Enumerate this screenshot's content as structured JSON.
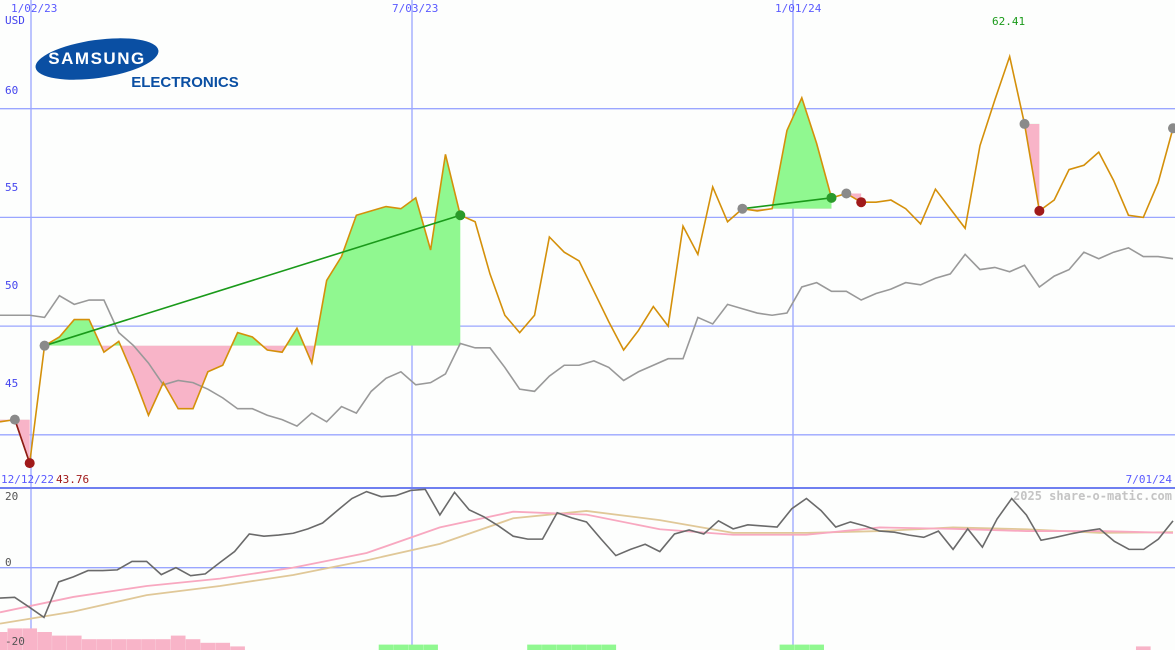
{
  "logo": {
    "brand": "SAMSUNG",
    "sub": "ELECTRONICS",
    "color": "#0a4fa3"
  },
  "chart_data": [
    {
      "type": "line",
      "unit": "USD",
      "x_ticks": [
        "1/02/23",
        "7/03/23",
        "1/01/24"
      ],
      "y_ticks": [
        60,
        55,
        50,
        45
      ],
      "ylim": [
        42.6,
        65.0
      ],
      "high_label": "62.41",
      "low_label": "43.76",
      "start_label": "12/12/22",
      "end_label": "7/01/24",
      "grid": true,
      "series": [
        {
          "role": "price",
          "color": "#d4900a",
          "values": [
            45.6,
            45.7,
            43.7,
            49.1,
            49.5,
            50.3,
            50.3,
            48.8,
            49.3,
            47.7,
            45.9,
            47.4,
            46.2,
            46.2,
            47.9,
            48.2,
            49.7,
            49.5,
            48.9,
            48.8,
            49.9,
            48.3,
            52.1,
            53.2,
            55.1,
            55.3,
            55.5,
            55.4,
            55.9,
            53.5,
            57.9,
            55.1,
            54.8,
            52.4,
            50.5,
            49.7,
            50.5,
            54.1,
            53.4,
            53.0,
            51.6,
            50.2,
            48.9,
            49.8,
            50.9,
            50.0,
            54.6,
            53.3,
            56.4,
            54.8,
            55.4,
            55.3,
            55.4,
            59.0,
            60.5,
            58.4,
            55.9,
            56.1,
            55.7,
            55.7,
            55.8,
            55.4,
            54.7,
            56.3,
            55.4,
            54.5,
            58.3,
            60.4,
            62.4,
            59.3,
            55.3,
            55.8,
            57.2,
            57.4,
            58.0,
            56.7,
            55.1,
            55.0,
            56.6,
            59.1
          ]
        },
        {
          "role": "relative",
          "color": "#999999",
          "values": [
            50.5,
            50.5,
            50.5,
            50.4,
            51.4,
            51.0,
            51.2,
            51.2,
            49.7,
            49.1,
            48.3,
            47.3,
            47.5,
            47.4,
            47.1,
            46.7,
            46.2,
            46.2,
            45.9,
            45.7,
            45.4,
            46.0,
            45.6,
            46.3,
            46.0,
            47.0,
            47.6,
            47.9,
            47.3,
            47.4,
            47.8,
            49.2,
            49.0,
            49.0,
            48.1,
            47.1,
            47.0,
            47.7,
            48.2,
            48.2,
            48.4,
            48.1,
            47.5,
            47.9,
            48.2,
            48.5,
            48.5,
            50.4,
            50.1,
            51.0,
            50.8,
            50.6,
            50.5,
            50.6,
            51.8,
            52.0,
            51.6,
            51.6,
            51.2,
            51.5,
            51.7,
            52.0,
            51.9,
            52.2,
            52.4,
            53.3,
            52.6,
            52.7,
            52.5,
            52.8,
            51.8,
            52.3,
            52.6,
            53.4,
            53.1,
            53.4,
            53.6,
            53.2,
            53.2,
            53.1
          ]
        }
      ],
      "signal_zones": [
        {
          "from": 0,
          "to": 2,
          "base": 45.7
        },
        {
          "from": 3,
          "to": 31,
          "base": 49.1
        },
        {
          "from": 50,
          "to": 56,
          "base": 55.4
        },
        {
          "from": 57,
          "to": 58,
          "base": 56.1
        },
        {
          "from": 69,
          "to": 70,
          "base": 59.3
        }
      ],
      "signals": [
        {
          "i": 1,
          "kind": "neutral"
        },
        {
          "i": 2,
          "kind": "sell"
        },
        {
          "i": 3,
          "kind": "neutral"
        },
        {
          "i": 31,
          "kind": "buy"
        },
        {
          "i": 50,
          "kind": "neutral"
        },
        {
          "i": 56,
          "kind": "buy"
        },
        {
          "i": 57,
          "kind": "neutral"
        },
        {
          "i": 58,
          "kind": "sell"
        },
        {
          "i": 69,
          "kind": "neutral"
        },
        {
          "i": 70,
          "kind": "sell"
        },
        {
          "i": 79,
          "kind": "neutral"
        }
      ],
      "trend_lines": [
        {
          "from": 3,
          "to": 31,
          "color": "#1a9a1a"
        },
        {
          "from": 50,
          "to": 56,
          "color": "#1a9a1a"
        },
        {
          "from": 1,
          "to": 2,
          "color": "#8b1a1a"
        }
      ],
      "colors": {
        "up_fill": "#90f890",
        "down_fill": "#f8b4c8",
        "buy": "#2a9a2a",
        "sell": "#a01a1a",
        "neutral": "#8a8a8a",
        "grid": "#9aa6ff"
      }
    },
    {
      "type": "line",
      "y_ticks": [
        20,
        0,
        -20
      ],
      "ylim": [
        -22.5,
        21.5
      ],
      "series": [
        {
          "role": "oscillator",
          "color": "#6a6a6a",
          "values": [
            -8.3,
            -8.1,
            -10.8,
            -13.6,
            -3.9,
            -2.5,
            -0.8,
            -0.8,
            -0.6,
            1.7,
            1.7,
            -1.9,
            0,
            -2.2,
            -1.7,
            1.4,
            4.4,
            9.2,
            8.6,
            8.9,
            9.4,
            10.6,
            12.2,
            15.6,
            18.9,
            20.8,
            19.4,
            19.7,
            21.1,
            21.4,
            14.4,
            20.6,
            15.8,
            13.9,
            11.4,
            8.6,
            7.8,
            7.8,
            15.0,
            13.6,
            12.5,
            7.8,
            3.3,
            5.0,
            6.4,
            4.4,
            9.2,
            10.3,
            9.2,
            12.8,
            10.6,
            11.7,
            11.4,
            11.1,
            16.1,
            18.9,
            15.6,
            11.1,
            12.5,
            11.4,
            10.0,
            9.7,
            8.9,
            8.3,
            10.0,
            5.0,
            10.6,
            5.6,
            13.3,
            18.9,
            14.4,
            7.5,
            8.3,
            9.2,
            10.0,
            10.6,
            7.2,
            5.0,
            5.0,
            7.8,
            12.8
          ]
        },
        {
          "role": "fast-average",
          "color": "#f8a8c0",
          "values": [
            -12.2,
            -8,
            -5,
            -3,
            0,
            4,
            11,
            15.3,
            14.5,
            10.5,
            9,
            9,
            11,
            10.6,
            10,
            10,
            9.5
          ]
        },
        {
          "role": "slow-average",
          "color": "#e0c898",
          "values": [
            -15.3,
            -12,
            -7.5,
            -5,
            -2,
            2,
            6.5,
            13.5,
            15.5,
            13,
            9.5,
            9.5,
            10,
            11,
            10.5,
            9.5,
            9.7
          ]
        }
      ],
      "histogram": [
        -5,
        -6,
        -6,
        -5,
        -4,
        -4,
        -3,
        -3,
        -3,
        -3,
        -3,
        -3,
        -4,
        -3,
        -2,
        -2,
        -1,
        0,
        0,
        0,
        0,
        0,
        0,
        0,
        0,
        0,
        1.5,
        1.5,
        1.5,
        1.5,
        0,
        0,
        0,
        0,
        0,
        0,
        1.5,
        1.5,
        1.5,
        1.5,
        1.5,
        1.5,
        0,
        0,
        0,
        0,
        0,
        0,
        0,
        0,
        0,
        0,
        0,
        1.5,
        1.5,
        1.5,
        0,
        0,
        0,
        0,
        0,
        0,
        0,
        0,
        0,
        0,
        0,
        0,
        0,
        0,
        0,
        0,
        0,
        0,
        0,
        0,
        0,
        -1,
        0,
        0,
        0
      ],
      "watermark": "2025 share-o-matic.com"
    }
  ]
}
